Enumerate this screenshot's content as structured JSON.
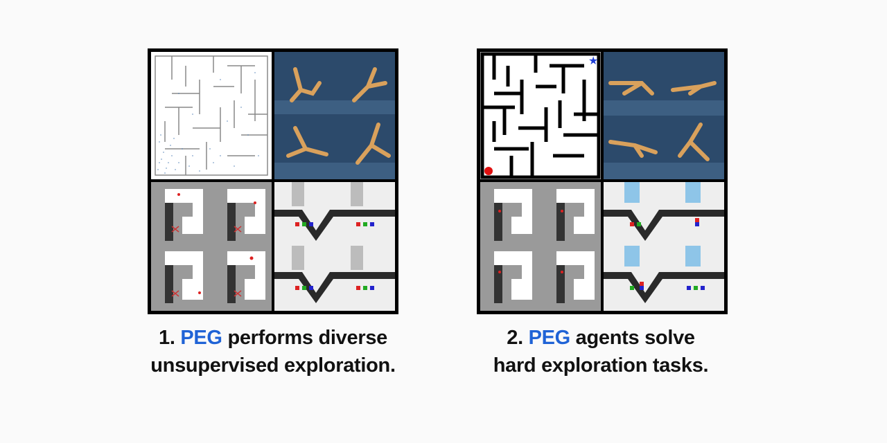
{
  "colors": {
    "accent": "#1f63d6",
    "text": "#111111",
    "background": "#fafafa"
  },
  "panels": [
    {
      "caption": {
        "prefix": "1. ",
        "highlight": "PEG",
        "line1_rest": " performs diverse",
        "line2": "unsupervised exploration."
      }
    },
    {
      "caption": {
        "prefix": "2. ",
        "highlight": "PEG",
        "line1_rest": " agents solve",
        "line2": "hard exploration tasks."
      }
    }
  ],
  "icons": [
    "maze-icon",
    "walker-icon",
    "ant-maze-icon",
    "robot-arm-icon",
    "goal-star-icon",
    "start-dot-icon"
  ]
}
